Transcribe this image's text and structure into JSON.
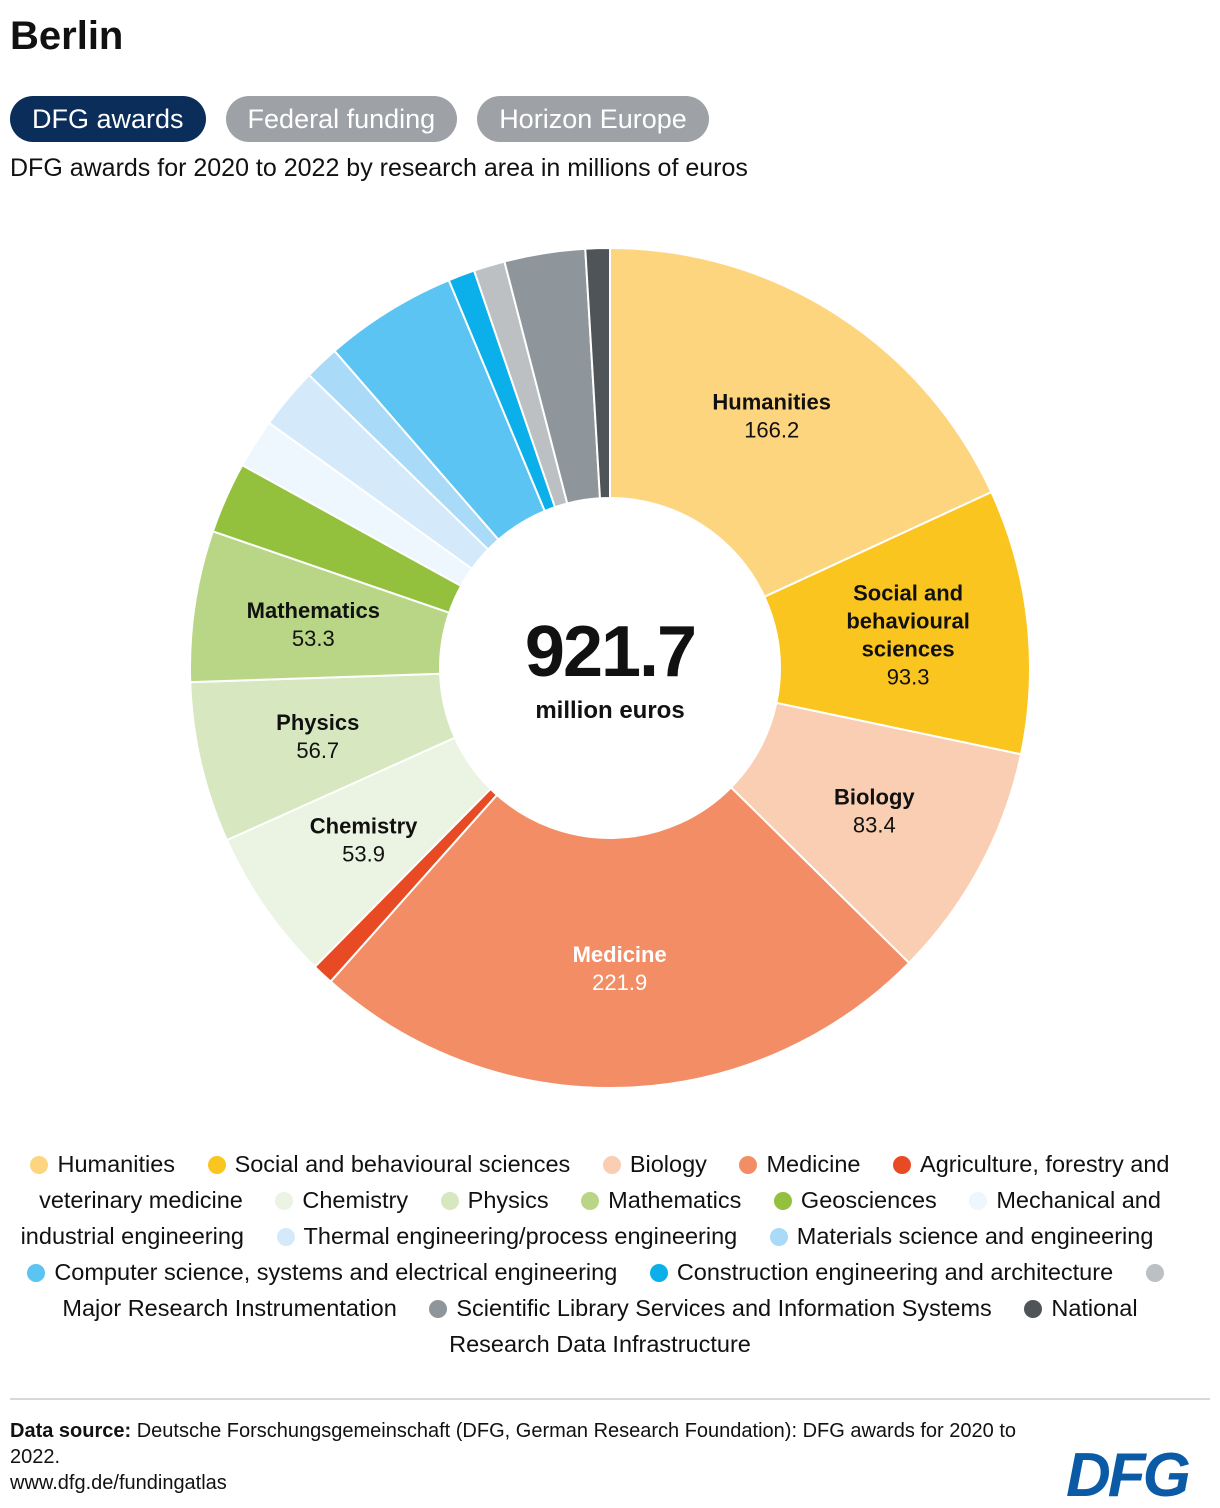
{
  "title": "Berlin",
  "tabs": [
    {
      "label": "DFG awards",
      "active": true
    },
    {
      "label": "Federal funding",
      "active": false
    },
    {
      "label": "Horizon Europe",
      "active": false
    }
  ],
  "subtitle": "DFG awards for 2020 to 2022 by research area in millions of euros",
  "center": {
    "total": "921.7",
    "unit": "million euros"
  },
  "chart_data": {
    "type": "pie",
    "donut": true,
    "total": 921.7,
    "slices": [
      {
        "label": "Humanities",
        "value": 166.2,
        "color": "#fdd57e",
        "shown_label": "Humanities",
        "value_label": "166.2",
        "label_color": "#111111"
      },
      {
        "label": "Social and behavioural sciences",
        "value": 93.3,
        "color": "#fbc520",
        "shown_label": "Social and\nbehavioural\nsciences",
        "value_label": "93.3",
        "label_color": "#111111"
      },
      {
        "label": "Biology",
        "value": 83.4,
        "color": "#f9ceb2",
        "shown_label": "Biology",
        "value_label": "83.4",
        "label_color": "#111111"
      },
      {
        "label": "Medicine",
        "value": 221.9,
        "color": "#f28d66",
        "shown_label": "Medicine",
        "value_label": "221.9",
        "label_color": "#ffffff"
      },
      {
        "label": "Agriculture, forestry and veterinary medicine",
        "value": 7.5,
        "color": "#e84b23"
      },
      {
        "label": "Chemistry",
        "value": 53.9,
        "color": "#ebf4e2",
        "shown_label": "Chemistry",
        "value_label": "53.9",
        "label_color": "#111111"
      },
      {
        "label": "Physics",
        "value": 56.7,
        "color": "#d7e7bf",
        "shown_label": "Physics",
        "value_label": "56.7",
        "label_color": "#111111"
      },
      {
        "label": "Mathematics",
        "value": 53.3,
        "color": "#b8d686",
        "shown_label": "Mathematics",
        "value_label": "53.3",
        "label_color": "#111111"
      },
      {
        "label": "Geosciences",
        "value": 25.2,
        "color": "#93c13e"
      },
      {
        "label": "Mechanical and industrial engineering",
        "value": 17.4,
        "color": "#eef6fe"
      },
      {
        "label": "Thermal engineering/process engineering",
        "value": 21.7,
        "color": "#d4eafb"
      },
      {
        "label": "Materials science and engineering",
        "value": 12.2,
        "color": "#a9daf7"
      },
      {
        "label": "Computer science, systems and electrical engineering",
        "value": 46.9,
        "color": "#5cc4f2"
      },
      {
        "label": "Construction engineering and architecture",
        "value": 9.4,
        "color": "#0bb0ea"
      },
      {
        "label": "Major Research Instrumentation",
        "value": 11.0,
        "color": "#bcc0c3"
      },
      {
        "label": "Scientific Library Services and Information Systems",
        "value": 28.5,
        "color": "#8f969b"
      },
      {
        "label": "National Research Data Infrastructure",
        "value": 8.6,
        "color": "#4f5458"
      }
    ]
  },
  "legend": [
    {
      "label": "Humanities",
      "color": "#fdd57e"
    },
    {
      "label": "Social and behavioural sciences",
      "color": "#fbc520"
    },
    {
      "label": "Biology",
      "color": "#f9ceb2"
    },
    {
      "label": "Medicine",
      "color": "#f28d66"
    },
    {
      "label": "Agriculture, forestry and veterinary medicine",
      "color": "#e84b23"
    },
    {
      "label": "Chemistry",
      "color": "#ebf4e2"
    },
    {
      "label": "Physics",
      "color": "#d7e7bf"
    },
    {
      "label": "Mathematics",
      "color": "#b8d686"
    },
    {
      "label": "Geosciences",
      "color": "#93c13e"
    },
    {
      "label": "Mechanical and industrial engineering",
      "color": "#eef6fe"
    },
    {
      "label": "Thermal engineering/process engineering",
      "color": "#d4eafb"
    },
    {
      "label": "Materials science and engineering",
      "color": "#a9daf7"
    },
    {
      "label": "Computer science, systems and electrical engineering",
      "color": "#5cc4f2"
    },
    {
      "label": "Construction engineering and architecture",
      "color": "#0bb0ea"
    },
    {
      "label": "Major Research Instrumentation",
      "color": "#bcc0c3"
    },
    {
      "label": "Scientific Library Services and Information Systems",
      "color": "#8f969b"
    },
    {
      "label": "National Research Data Infrastructure",
      "color": "#4f5458"
    }
  ],
  "source": {
    "label": "Data source:",
    "text": "Deutsche Forschungsgemeinschaft (DFG, German Research Foundation): DFG awards for 2020 to 2022.",
    "url": "www.dfg.de/fundingatlas"
  },
  "logo": {
    "text": "DFG",
    "color": "#0b5aa6"
  }
}
